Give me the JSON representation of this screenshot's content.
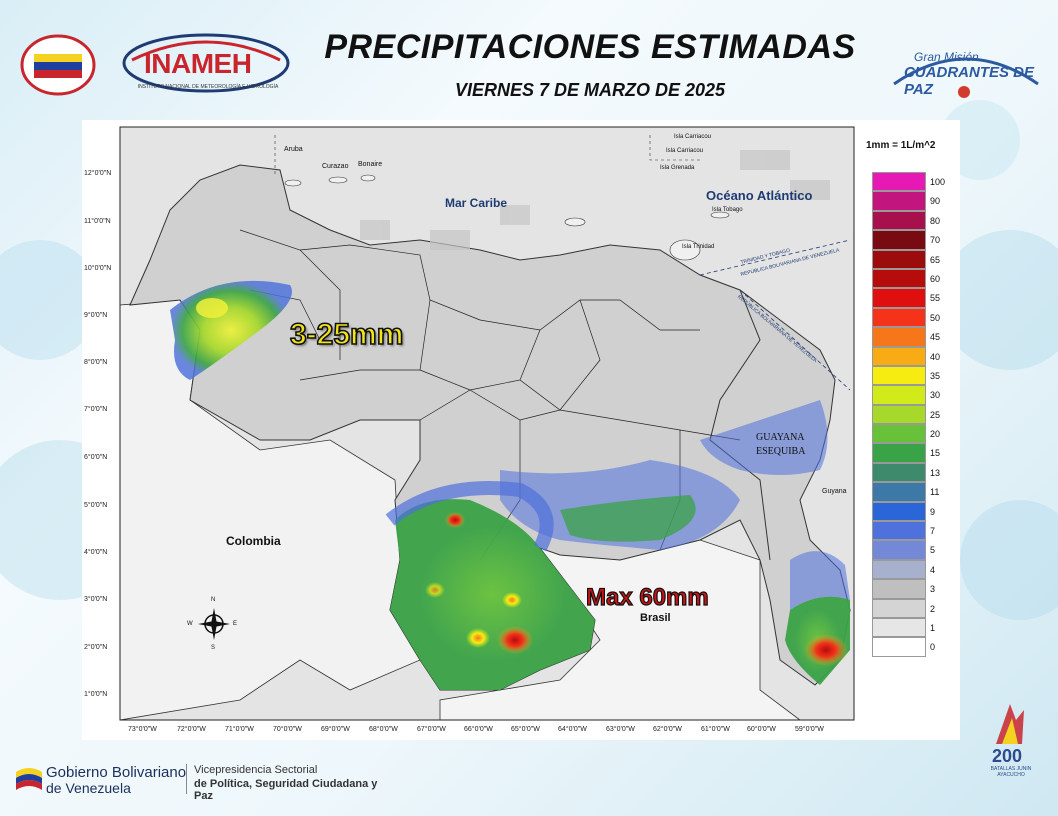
{
  "header": {
    "title": "PRECIPITACIONES ESTIMADAS",
    "date": "VIERNES 7 DE MARZO DE 2025"
  },
  "logos": {
    "inameh_text": "INAMEH",
    "inameh_subtitle": "INSTITUTO NACIONAL DE METEOROLOGÍA E HIDROLOGÍA",
    "cuadrantes_line1": "Gran Misión",
    "cuadrantes_line2": "CUADRANTES DE PAZ",
    "bicentenary_number": "200",
    "bicentenary_sub": "BATALLAS JUNIN AYACUCHO"
  },
  "map": {
    "legend_title": "1mm = 1L/m^2",
    "latitude_labels": [
      "12°0'0\"N",
      "11°0'0\"N",
      "10°0'0\"N",
      "9°0'0\"N",
      "8°0'0\"N",
      "7°0'0\"N",
      "6°0'0\"N",
      "5°0'0\"N",
      "4°0'0\"N",
      "3°0'0\"N",
      "2°0'0\"N",
      "1°0'0\"N"
    ],
    "longitude_labels": [
      "73°0'0\"W",
      "72°0'0\"W",
      "71°0'0\"W",
      "70°0'0\"W",
      "69°0'0\"W",
      "68°0'0\"W",
      "67°0'0\"W",
      "66°0'0\"W",
      "65°0'0\"W",
      "64°0'0\"W",
      "63°0'0\"W",
      "62°0'0\"W",
      "61°0'0\"W",
      "60°0'0\"W",
      "59°0'0\"W"
    ],
    "places": {
      "mar_caribe": "Mar Caribe",
      "oceano_atlantico": "Océano Atlántico",
      "colombia": "Colombia",
      "brasil": "Brasil",
      "guayana_l1": "GUAYANA",
      "guayana_l2": "ESEQUIBA",
      "guyana": "Guyana",
      "aruba": "Aruba",
      "curazao": "Curazao",
      "bonaire": "Bonaire",
      "carriacou": "Isla Carriacou",
      "carriacou_small": "Isla Carriacou",
      "grenada": "Isla Grenada",
      "tobago": "Isla Tobago",
      "trinidad": "Isla Trinidad",
      "tt_border": "TRINIDAD Y TOBAGO",
      "rbv_border": "REPÚBLICA BOLIVARIANA DE VENEZUELA",
      "rbv_border2": "REPÚBLICA BOLIVARIANA DE VENEZUELA",
      "compass_n": "N",
      "compass_s": "S",
      "compass_e": "E",
      "compass_w": "W"
    },
    "annotations": {
      "range": "3-25mm",
      "max": "Max 60mm"
    },
    "legend": [
      {
        "value": "100",
        "color": "#e619b4"
      },
      {
        "value": "90",
        "color": "#c2157d"
      },
      {
        "value": "80",
        "color": "#a8104d"
      },
      {
        "value": "70",
        "color": "#7a0a12"
      },
      {
        "value": "65",
        "color": "#9c0c0c"
      },
      {
        "value": "60",
        "color": "#b60c0c"
      },
      {
        "value": "55",
        "color": "#e00f0f"
      },
      {
        "value": "50",
        "color": "#f5321a"
      },
      {
        "value": "45",
        "color": "#f6771a"
      },
      {
        "value": "40",
        "color": "#f8ab14"
      },
      {
        "value": "35",
        "color": "#f7ec12"
      },
      {
        "value": "30",
        "color": "#d1ea1a"
      },
      {
        "value": "25",
        "color": "#a6d92a"
      },
      {
        "value": "20",
        "color": "#67c23a"
      },
      {
        "value": "15",
        "color": "#3ba347"
      },
      {
        "value": "13",
        "color": "#3e8a6c"
      },
      {
        "value": "11",
        "color": "#3c79a6"
      },
      {
        "value": "9",
        "color": "#2a66d8"
      },
      {
        "value": "7",
        "color": "#4e71dc"
      },
      {
        "value": "5",
        "color": "#7388d6"
      },
      {
        "value": "4",
        "color": "#a7b0cc"
      },
      {
        "value": "3",
        "color": "#bfbfbf"
      },
      {
        "value": "2",
        "color": "#d4d4d4"
      },
      {
        "value": "1",
        "color": "#e6e6e6"
      },
      {
        "value": "0",
        "color": "#ffffff"
      }
    ]
  },
  "footer": {
    "gov_line1": "Gobierno Bolivariano",
    "gov_line2": "de Venezuela",
    "vp_line1": "Vicepresidencia Sectorial",
    "vp_line2": "de Política, Seguridad Ciudadana y Paz"
  }
}
